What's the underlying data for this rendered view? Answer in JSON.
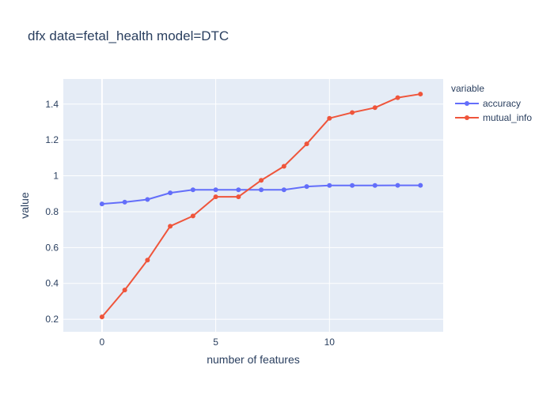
{
  "chart_data": {
    "type": "line",
    "title": "dfx data=fetal_health model=DTC",
    "xlabel": "number of features",
    "ylabel": "value",
    "x": [
      0,
      1,
      2,
      3,
      4,
      5,
      6,
      7,
      8,
      9,
      10,
      11,
      12,
      13,
      14
    ],
    "xlim": [
      -1.7,
      15.0
    ],
    "ylim": [
      0.13,
      1.54
    ],
    "x_ticks": [
      0,
      5,
      10
    ],
    "x_tick_labels": [
      "0",
      "5",
      "10"
    ],
    "y_ticks": [
      0.2,
      0.4,
      0.6,
      0.8,
      1.0,
      1.2,
      1.4
    ],
    "y_tick_labels": [
      "0.2",
      "0.4",
      "0.6",
      "0.8",
      "1",
      "1.2",
      "1.4"
    ],
    "grid": true,
    "legend": {
      "title": "variable",
      "placement": "top-right outside"
    },
    "series": [
      {
        "name": "accuracy",
        "color": "#636efa",
        "values": [
          0.843,
          0.853,
          0.868,
          0.905,
          0.922,
          0.922,
          0.922,
          0.922,
          0.922,
          0.94,
          0.946,
          0.946,
          0.946,
          0.947,
          0.947
        ]
      },
      {
        "name": "mutual_info",
        "color": "#ef553b",
        "values": [
          0.213,
          0.363,
          0.53,
          0.719,
          0.776,
          0.883,
          0.883,
          0.975,
          1.053,
          1.178,
          1.321,
          1.353,
          1.38,
          1.436,
          1.456
        ]
      }
    ],
    "colors": {
      "plot_background": "#e5ecf6",
      "gridline": "#ffffff",
      "text": "#2a3f5f"
    }
  }
}
